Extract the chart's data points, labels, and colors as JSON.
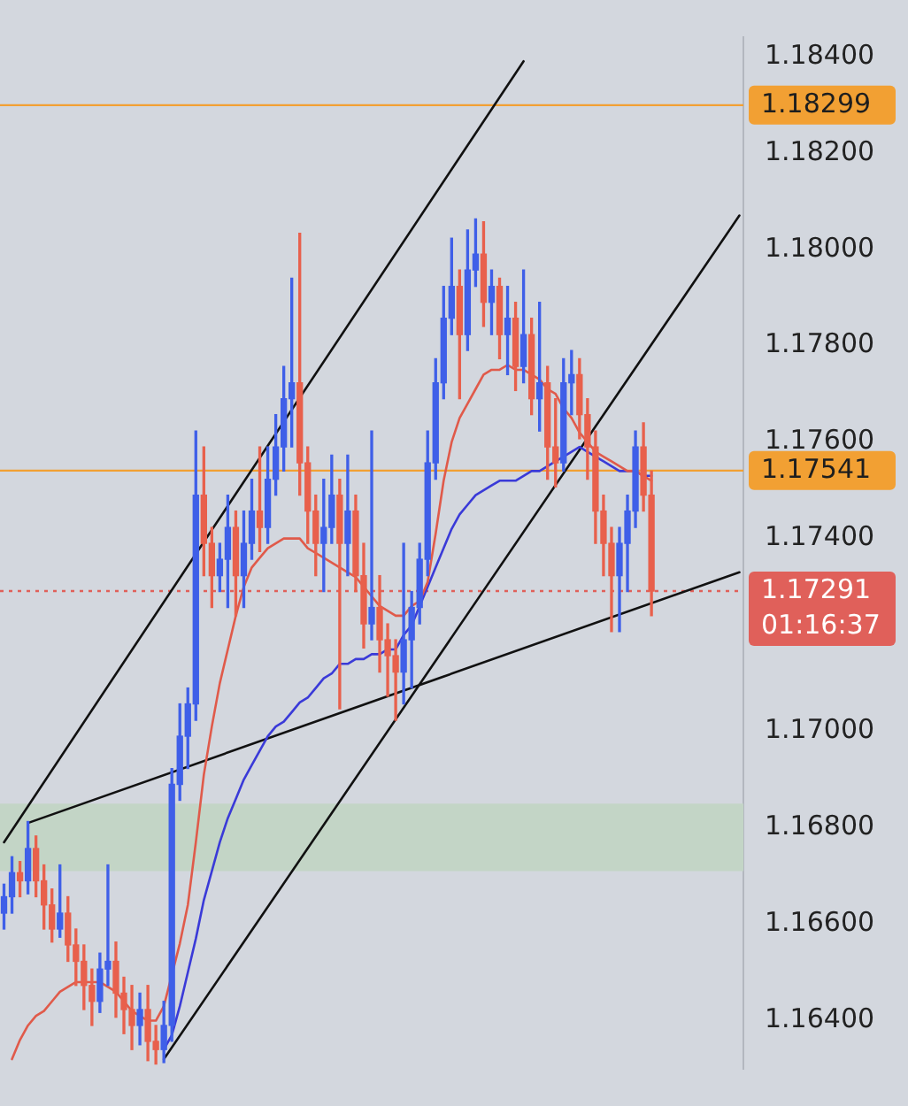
{
  "chart_data": {
    "type": "candlestick",
    "categories": [
      null,
      null,
      null,
      null,
      null,
      null,
      null,
      null,
      null,
      null,
      null,
      null,
      null,
      null,
      null,
      null,
      null,
      null,
      null,
      null,
      null,
      null,
      null,
      null,
      null,
      null,
      null,
      null,
      null,
      null,
      null,
      null,
      null,
      null,
      null,
      null,
      null,
      null,
      null,
      null,
      null,
      null,
      null,
      null,
      null,
      null,
      null,
      null,
      null,
      null,
      null,
      null,
      null,
      null,
      null,
      null,
      null,
      null,
      null,
      null,
      null,
      null,
      null,
      null,
      null,
      null,
      null,
      null,
      null,
      null,
      null,
      null,
      null,
      null,
      null,
      null,
      null,
      null,
      null,
      null,
      null,
      null,
      null,
      null,
      null,
      null,
      null,
      null,
      null,
      null,
      null,
      null,
      null
    ],
    "ohlc": [
      [
        1.16623,
        1.16683,
        1.1659,
        1.16657
      ],
      [
        1.16657,
        1.1674,
        1.16623,
        1.16707
      ],
      [
        1.16707,
        1.1673,
        1.16657,
        1.1669
      ],
      [
        1.1669,
        1.16813,
        1.16663,
        1.16757
      ],
      [
        1.16757,
        1.16783,
        1.16657,
        1.1669
      ],
      [
        1.1669,
        1.16723,
        1.1659,
        1.1664
      ],
      [
        1.1664,
        1.16673,
        1.16563,
        1.1659
      ],
      [
        1.1659,
        1.16723,
        1.16573,
        1.16623
      ],
      [
        1.16623,
        1.16657,
        1.16523,
        1.16557
      ],
      [
        1.16557,
        1.1659,
        1.16473,
        1.16523
      ],
      [
        1.16523,
        1.16557,
        1.16423,
        1.16473
      ],
      [
        1.16473,
        1.16507,
        1.1639,
        1.1644
      ],
      [
        1.1644,
        1.1654,
        1.16417,
        1.16507
      ],
      [
        1.16507,
        1.16723,
        1.16473,
        1.16523
      ],
      [
        1.16523,
        1.16563,
        1.16407,
        1.16457
      ],
      [
        1.16457,
        1.1649,
        1.16373,
        1.16423
      ],
      [
        1.16423,
        1.16473,
        1.1634,
        1.1639
      ],
      [
        1.1639,
        1.16457,
        1.1635,
        1.16423
      ],
      [
        1.16423,
        1.16473,
        1.16317,
        1.16357
      ],
      [
        1.16357,
        1.1639,
        1.1631,
        1.1634
      ],
      [
        1.1634,
        1.1644,
        1.16313,
        1.1639
      ],
      [
        1.1639,
        1.16923,
        1.16357,
        1.1689
      ],
      [
        1.1689,
        1.17057,
        1.16857,
        1.1699
      ],
      [
        1.1699,
        1.1709,
        1.16923,
        1.17057
      ],
      [
        1.17057,
        1.17623,
        1.17023,
        1.1749
      ],
      [
        1.1749,
        1.1759,
        1.17323,
        1.1739
      ],
      [
        1.1739,
        1.17423,
        1.17257,
        1.17323
      ],
      [
        1.17323,
        1.1739,
        1.1729,
        1.17357
      ],
      [
        1.17357,
        1.1749,
        1.17257,
        1.17423
      ],
      [
        1.17423,
        1.17457,
        1.1724,
        1.17323
      ],
      [
        1.17323,
        1.17457,
        1.17257,
        1.1739
      ],
      [
        1.1739,
        1.17523,
        1.17357,
        1.17457
      ],
      [
        1.17457,
        1.1759,
        1.17373,
        1.17423
      ],
      [
        1.17423,
        1.1759,
        1.1739,
        1.17523
      ],
      [
        1.17523,
        1.17657,
        1.1749,
        1.1759
      ],
      [
        1.1759,
        1.17757,
        1.1754,
        1.1769
      ],
      [
        1.1769,
        1.1794,
        1.1759,
        1.17723
      ],
      [
        1.17723,
        1.18033,
        1.1749,
        1.17557
      ],
      [
        1.17557,
        1.1759,
        1.1739,
        1.17457
      ],
      [
        1.17457,
        1.1749,
        1.17323,
        1.1739
      ],
      [
        1.1739,
        1.17523,
        1.1729,
        1.17423
      ],
      [
        1.17423,
        1.17573,
        1.1739,
        1.1749
      ],
      [
        1.1749,
        1.17523,
        1.17047,
        1.1739
      ],
      [
        1.1739,
        1.17573,
        1.17323,
        1.17457
      ],
      [
        1.17457,
        1.1749,
        1.1729,
        1.17323
      ],
      [
        1.17323,
        1.1739,
        1.17173,
        1.17223
      ],
      [
        1.17223,
        1.17623,
        1.1719,
        1.17257
      ],
      [
        1.17257,
        1.17323,
        1.17123,
        1.1719
      ],
      [
        1.1719,
        1.17223,
        1.17073,
        1.17157
      ],
      [
        1.17157,
        1.1719,
        1.17023,
        1.17123
      ],
      [
        1.17123,
        1.1739,
        1.17057,
        1.1719
      ],
      [
        1.1719,
        1.1729,
        1.1709,
        1.17257
      ],
      [
        1.17257,
        1.1739,
        1.17223,
        1.17357
      ],
      [
        1.17357,
        1.17623,
        1.17323,
        1.17557
      ],
      [
        1.17557,
        1.17773,
        1.17523,
        1.17723
      ],
      [
        1.17723,
        1.17923,
        1.1769,
        1.17857
      ],
      [
        1.17857,
        1.18023,
        1.17823,
        1.17923
      ],
      [
        1.17923,
        1.17957,
        1.1769,
        1.17823
      ],
      [
        1.17823,
        1.1804,
        1.1779,
        1.17957
      ],
      [
        1.17957,
        1.18063,
        1.17923,
        1.1799
      ],
      [
        1.1799,
        1.18057,
        1.1784,
        1.1789
      ],
      [
        1.1789,
        1.17957,
        1.17823,
        1.17923
      ],
      [
        1.17923,
        1.1794,
        1.17773,
        1.17823
      ],
      [
        1.17823,
        1.17923,
        1.1774,
        1.17857
      ],
      [
        1.17857,
        1.1789,
        1.17707,
        1.17757
      ],
      [
        1.17757,
        1.17957,
        1.17723,
        1.17823
      ],
      [
        1.17823,
        1.17857,
        1.17657,
        1.1769
      ],
      [
        1.1769,
        1.1789,
        1.17623,
        1.17723
      ],
      [
        1.17723,
        1.17757,
        1.17523,
        1.1759
      ],
      [
        1.1759,
        1.1769,
        1.17507,
        1.17557
      ],
      [
        1.17557,
        1.17773,
        1.1754,
        1.17723
      ],
      [
        1.17723,
        1.1779,
        1.17657,
        1.1774
      ],
      [
        1.1774,
        1.17773,
        1.17607,
        1.17657
      ],
      [
        1.17657,
        1.1769,
        1.17523,
        1.1759
      ],
      [
        1.1759,
        1.17623,
        1.1739,
        1.17457
      ],
      [
        1.17457,
        1.1749,
        1.17323,
        1.1739
      ],
      [
        1.1739,
        1.17423,
        1.17207,
        1.17323
      ],
      [
        1.17323,
        1.17423,
        1.17207,
        1.1739
      ],
      [
        1.1739,
        1.1749,
        1.1729,
        1.17457
      ],
      [
        1.17457,
        1.17623,
        1.17423,
        1.1759
      ],
      [
        1.1759,
        1.1764,
        1.17457,
        1.1749
      ],
      [
        1.1749,
        1.1754,
        1.1724,
        1.17291
      ],
      null,
      null,
      null,
      null,
      null,
      null,
      null,
      null,
      null,
      null,
      null
    ],
    "colors": [
      "#3f5fe8",
      "#3f5fe8",
      "#e8604c",
      "#3f5fe8",
      "#e8604c",
      "#e8604c",
      "#e8604c",
      "#3f5fe8",
      "#e8604c",
      "#e8604c",
      "#e8604c",
      "#e8604c",
      "#3f5fe8",
      "#3f5fe8",
      "#e8604c",
      "#e8604c",
      "#e8604c",
      "#3f5fe8",
      "#e8604c",
      "#e8604c",
      "#3f5fe8",
      "#3f5fe8",
      "#3f5fe8",
      "#3f5fe8",
      "#3f5fe8",
      "#e8604c",
      "#e8604c",
      "#3f5fe8",
      "#3f5fe8",
      "#e8604c",
      "#3f5fe8",
      "#3f5fe8",
      "#e8604c",
      "#3f5fe8",
      "#3f5fe8",
      "#3f5fe8",
      "#3f5fe8",
      "#e8604c",
      "#e8604c",
      "#e8604c",
      "#3f5fe8",
      "#3f5fe8",
      "#e8604c",
      "#3f5fe8",
      "#e8604c",
      "#e8604c",
      "#3f5fe8",
      "#e8604c",
      "#e8604c",
      "#e8604c",
      "#3f5fe8",
      "#3f5fe8",
      "#3f5fe8",
      "#3f5fe8",
      "#3f5fe8",
      "#3f5fe8",
      "#3f5fe8",
      "#e8604c",
      "#3f5fe8",
      "#3f5fe8",
      "#e8604c",
      "#3f5fe8",
      "#e8604c",
      "#3f5fe8",
      "#e8604c",
      "#3f5fe8",
      "#e8604c",
      "#3f5fe8",
      "#e8604c",
      "#e8604c",
      "#3f5fe8",
      "#3f5fe8",
      "#e8604c",
      "#e8604c",
      "#e8604c",
      "#e8604c",
      "#e8604c",
      "#3f5fe8",
      "#3f5fe8",
      "#3f5fe8",
      "#e8604c",
      "#e8604c",
      null,
      null,
      null,
      null,
      null,
      null,
      null,
      null,
      null,
      null,
      null
    ],
    "series": [
      {
        "type": "line",
        "color": "#e05a4a",
        "values": [
          null,
          1.1632,
          1.1636,
          1.1639,
          1.1641,
          1.1642,
          1.1644,
          1.1646,
          1.1647,
          1.1648,
          1.1648,
          1.1648,
          1.1648,
          1.1647,
          1.1646,
          1.1644,
          1.1642,
          1.1641,
          1.164,
          1.164,
          1.1643,
          null,
          1.1656,
          1.1664,
          1.1677,
          1.1691,
          1.1701,
          1.171,
          1.1717,
          1.1724,
          1.173,
          1.1734,
          1.1736,
          1.1738,
          1.1739,
          1.174,
          1.174,
          1.174,
          1.1738,
          1.1737,
          1.1736,
          1.1735,
          1.1734,
          1.1733,
          1.1732,
          1.173,
          1.1728,
          1.1726,
          1.1725,
          1.1724,
          1.1724,
          1.1726,
          1.1727,
          1.1731,
          1.1741,
          1.1752,
          1.176,
          1.1765,
          1.1768,
          1.1771,
          1.1774,
          1.1775,
          1.1775,
          1.1776,
          1.1775,
          1.1775,
          1.1774,
          1.1773,
          1.1771,
          1.177,
          1.1767,
          1.1765,
          1.1762,
          1.176,
          1.1758,
          1.1757,
          1.1756,
          1.1755,
          1.1754,
          1.1754,
          1.1753,
          1.1752,
          null,
          null,
          null,
          null,
          null,
          null,
          null,
          null,
          null,
          null,
          null
        ]
      },
      {
        "type": "line",
        "color": "#3a3ad8",
        "values": [
          null,
          null,
          null,
          null,
          null,
          null,
          null,
          null,
          null,
          null,
          null,
          null,
          null,
          null,
          null,
          null,
          null,
          null,
          null,
          null,
          1.1634,
          1.1637,
          1.1643,
          1.165,
          1.1657,
          1.1665,
          1.1671,
          1.1677,
          1.1682,
          1.1686,
          1.169,
          1.1693,
          1.1696,
          1.1699,
          1.1701,
          1.1702,
          1.1704,
          1.1706,
          1.1707,
          1.1709,
          1.1711,
          1.1712,
          1.1714,
          1.1714,
          1.1715,
          1.1715,
          1.1716,
          1.1716,
          1.1717,
          1.1717,
          1.172,
          1.1722,
          1.1726,
          1.173,
          1.1734,
          1.1738,
          1.1742,
          1.1745,
          1.1747,
          1.1749,
          1.175,
          1.1751,
          1.1752,
          1.1752,
          1.1752,
          1.1753,
          1.1754,
          1.1754,
          1.1755,
          1.1756,
          1.1757,
          1.1758,
          1.1759,
          1.1758,
          1.1757,
          1.1756,
          1.1755,
          1.1754,
          1.1754,
          1.1754,
          1.1753,
          1.1753,
          null,
          null,
          null,
          null,
          null,
          null,
          null,
          null,
          null,
          null,
          null
        ]
      },
      {
        "type": "line",
        "color": "#111111",
        "values": [
          1.1677,
          null,
          null,
          null,
          null,
          null,
          null,
          null,
          null,
          null,
          null,
          null,
          null,
          null,
          null,
          null,
          null,
          null,
          null,
          null,
          null,
          null,
          null,
          null,
          null,
          null,
          null,
          null,
          null,
          null,
          null,
          null,
          null,
          null,
          null,
          null,
          null,
          null,
          null,
          null,
          null,
          null,
          null,
          null,
          null,
          null,
          null,
          null,
          null,
          null,
          null,
          null,
          null,
          null,
          null,
          null,
          null,
          null,
          null,
          null,
          null,
          null,
          null,
          null,
          null,
          1.1839,
          null,
          null,
          null,
          null,
          null,
          null,
          null,
          null,
          null,
          null,
          null,
          null,
          null,
          null,
          null,
          null,
          null,
          null,
          null,
          null,
          null,
          null,
          null,
          null,
          null,
          null,
          null
        ]
      },
      {
        "type": "line",
        "color": "#111111",
        "values": [
          null,
          null,
          null,
          null,
          null,
          null,
          null,
          null,
          null,
          null,
          null,
          null,
          null,
          null,
          null,
          null,
          null,
          null,
          null,
          null,
          1.1632,
          null,
          null,
          null,
          null,
          null,
          null,
          null,
          null,
          null,
          null,
          null,
          null,
          null,
          null,
          null,
          null,
          null,
          null,
          null,
          null,
          null,
          null,
          null,
          null,
          null,
          null,
          null,
          null,
          null,
          null,
          null,
          null,
          null,
          null,
          null,
          null,
          null,
          null,
          null,
          null,
          null,
          null,
          null,
          null,
          null,
          null,
          null,
          null,
          null,
          null,
          null,
          null,
          null,
          null,
          null,
          null,
          null,
          null,
          null,
          null,
          null,
          null,
          null,
          null,
          null,
          null,
          null,
          null,
          null,
          null,
          null,
          1.1807
        ]
      },
      {
        "type": "line",
        "color": "#111111",
        "values": [
          null,
          null,
          null,
          1.1681,
          null,
          null,
          null,
          null,
          null,
          null,
          null,
          null,
          null,
          null,
          null,
          null,
          null,
          null,
          null,
          null,
          null,
          null,
          null,
          null,
          null,
          null,
          null,
          null,
          null,
          null,
          null,
          null,
          null,
          null,
          null,
          null,
          null,
          null,
          null,
          null,
          null,
          null,
          null,
          null,
          null,
          null,
          null,
          null,
          null,
          null,
          null,
          null,
          null,
          null,
          null,
          null,
          null,
          null,
          null,
          null,
          null,
          null,
          null,
          null,
          null,
          null,
          null,
          null,
          null,
          null,
          null,
          null,
          null,
          null,
          null,
          null,
          null,
          null,
          null,
          null,
          null,
          null,
          null,
          null,
          null,
          null,
          null,
          null,
          null,
          null,
          null,
          null,
          1.1733
        ]
      }
    ],
    "ylim": [
      1.163,
      1.1844
    ],
    "yticks": [
      {
        "value": 1.164,
        "label": "1.16400"
      },
      {
        "value": 1.166,
        "label": "1.16600"
      },
      {
        "value": 1.168,
        "label": "1.16800"
      },
      {
        "value": 1.17,
        "label": "1.17000"
      },
      {
        "value": 1.174,
        "label": "1.17400"
      },
      {
        "value": 1.176,
        "label": "1.17600"
      },
      {
        "value": 1.178,
        "label": "1.17800"
      },
      {
        "value": 1.18,
        "label": "1.18000"
      },
      {
        "value": 1.182,
        "label": "1.18200"
      },
      {
        "value": 1.184,
        "label": "1.18400"
      }
    ],
    "tick_labels": "y",
    "bands": [
      {
        "axis": "y",
        "from": 1.1671,
        "to": 1.1685,
        "color": "#c3d5c6"
      }
    ],
    "ref_lines": [
      {
        "axis": "y",
        "value": 1.18299,
        "label": "1.18299",
        "color": "#f2a033",
        "line_style": "solid"
      },
      {
        "axis": "y",
        "value": 1.17541,
        "label": "1.17541",
        "color": "#f2a033",
        "line_style": "solid"
      },
      {
        "axis": "y",
        "value": 1.17291,
        "label": "1.17291",
        "color": "#e0605a",
        "line_style": "dotted"
      }
    ],
    "annotations": [
      "01:16:37"
    ]
  }
}
